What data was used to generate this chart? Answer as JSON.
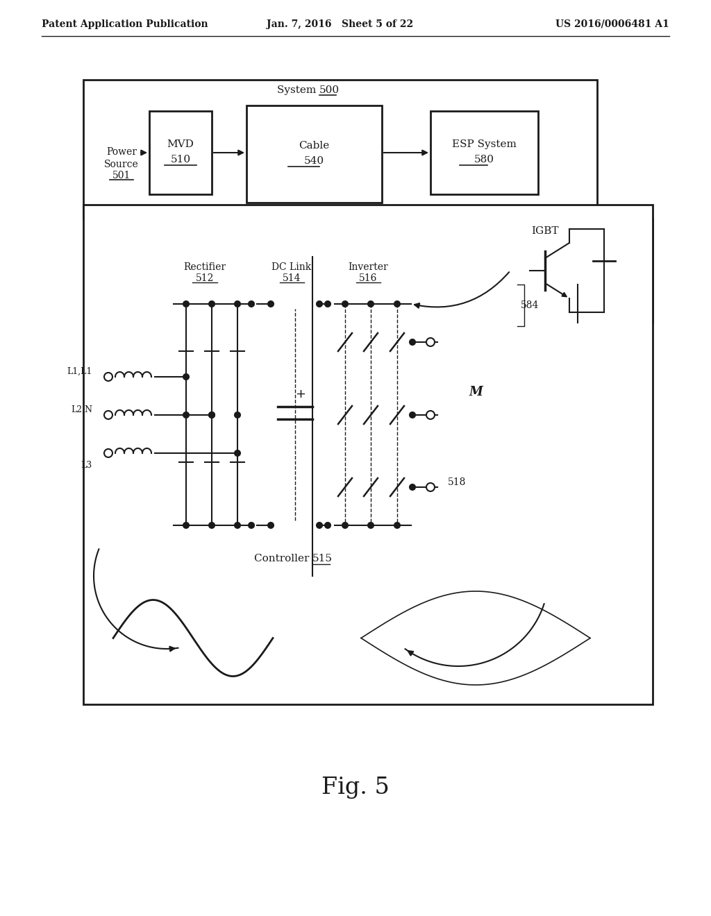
{
  "bg_color": "#ffffff",
  "lc": "#1a1a1a",
  "header_left": "Patent Application Publication",
  "header_mid": "Jan. 7, 2016   Sheet 5 of 22",
  "header_right": "US 2016/0006481 A1",
  "fig_label": "Fig. 5"
}
